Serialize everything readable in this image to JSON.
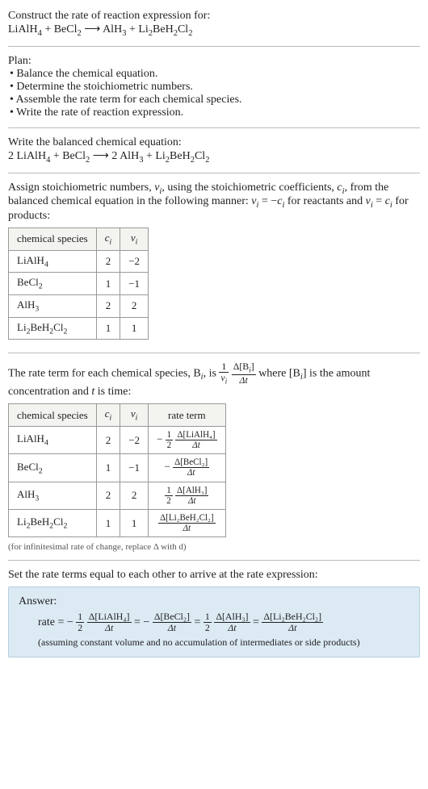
{
  "prompt": {
    "line1": "Construct the rate of reaction expression for:",
    "equation_lhs1": "LiAlH",
    "equation_lhs1_sub": "4",
    "equation_plus1": " + ",
    "equation_lhs2": "BeCl",
    "equation_lhs2_sub": "2",
    "equation_arrow": " ⟶ ",
    "equation_rhs1": "AlH",
    "equation_rhs1_sub": "3",
    "equation_plus2": " + ",
    "equation_rhs2": "Li",
    "equation_rhs2_sub1": "2",
    "equation_rhs2b": "BeH",
    "equation_rhs2_sub2": "2",
    "equation_rhs2c": "Cl",
    "equation_rhs2_sub3": "2"
  },
  "plan": {
    "title": "Plan:",
    "items": [
      "Balance the chemical equation.",
      "Determine the stoichiometric numbers.",
      "Assemble the rate term for each chemical species.",
      "Write the rate of reaction expression."
    ]
  },
  "balanced": {
    "title": "Write the balanced chemical equation:",
    "c1": "2 ",
    "s1": "LiAlH",
    "s1sub": "4",
    "plus1": " + ",
    "s2": "BeCl",
    "s2sub": "2",
    "arrow": " ⟶ ",
    "c2": "2 ",
    "s3": "AlH",
    "s3sub": "3",
    "plus2": " + ",
    "s4a": "Li",
    "s4sub1": "2",
    "s4b": "BeH",
    "s4sub2": "2",
    "s4c": "Cl",
    "s4sub3": "2"
  },
  "stoich": {
    "intro1": "Assign stoichiometric numbers, ",
    "nu": "ν",
    "nu_sub": "i",
    "intro2": ", using the stoichiometric coefficients, ",
    "c": "c",
    "c_sub": "i",
    "intro3": ", from the balanced chemical equation in the following manner: ",
    "rel1a": "ν",
    "rel1sub": "i",
    "rel1eq": " = −",
    "rel1c": "c",
    "rel1csub": "i",
    "intro4": " for reactants and ",
    "rel2a": "ν",
    "rel2sub": "i",
    "rel2eq": " = ",
    "rel2c": "c",
    "rel2csub": "i",
    "intro5": " for products:",
    "headers": [
      "chemical species",
      "cᵢ",
      "νᵢ"
    ],
    "h_c": "c",
    "h_c_sub": "i",
    "h_nu": "ν",
    "h_nu_sub": "i",
    "rows": [
      {
        "sp_a": "LiAlH",
        "sp_sub1": "4",
        "sp_b": "",
        "sp_sub2": "",
        "sp_c": "",
        "sp_sub3": "",
        "ci": "2",
        "vi": "−2"
      },
      {
        "sp_a": "BeCl",
        "sp_sub1": "2",
        "sp_b": "",
        "sp_sub2": "",
        "sp_c": "",
        "sp_sub3": "",
        "ci": "1",
        "vi": "−1"
      },
      {
        "sp_a": "AlH",
        "sp_sub1": "3",
        "sp_b": "",
        "sp_sub2": "",
        "sp_c": "",
        "sp_sub3": "",
        "ci": "2",
        "vi": "2"
      },
      {
        "sp_a": "Li",
        "sp_sub1": "2",
        "sp_b": "BeH",
        "sp_sub2": "2",
        "sp_c": "Cl",
        "sp_sub3": "2",
        "ci": "1",
        "vi": "1"
      }
    ]
  },
  "rateterm": {
    "t1": "The rate term for each chemical species, B",
    "t1sub": "i",
    "t2": ", is ",
    "frac1_num": "1",
    "frac1_den_a": "ν",
    "frac1_den_sub": "i",
    "frac2_num_a": "Δ[B",
    "frac2_num_sub": "i",
    "frac2_num_b": "]",
    "frac2_den": "Δt",
    "t3": " where [B",
    "t3sub": "i",
    "t4": "] is the amount concentration and ",
    "t5": "t",
    "t6": " is time:",
    "headers": {
      "sp": "chemical species",
      "c": "c",
      "c_sub": "i",
      "nu": "ν",
      "nu_sub": "i",
      "rt": "rate term"
    },
    "rows": [
      {
        "sp_a": "LiAlH",
        "sp_sub1": "4",
        "sp_b": "",
        "sp_sub2": "",
        "sp_c": "",
        "sp_sub3": "",
        "ci": "2",
        "vi": "−2",
        "neg": "−",
        "coef_num": "1",
        "coef_den": "2",
        "d_num": "Δ[LiAlH₄]",
        "d_den": "Δt"
      },
      {
        "sp_a": "BeCl",
        "sp_sub1": "2",
        "sp_b": "",
        "sp_sub2": "",
        "sp_c": "",
        "sp_sub3": "",
        "ci": "1",
        "vi": "−1",
        "neg": "−",
        "coef_num": "",
        "coef_den": "",
        "d_num": "Δ[BeCl₂]",
        "d_den": "Δt"
      },
      {
        "sp_a": "AlH",
        "sp_sub1": "3",
        "sp_b": "",
        "sp_sub2": "",
        "sp_c": "",
        "sp_sub3": "",
        "ci": "2",
        "vi": "2",
        "neg": "",
        "coef_num": "1",
        "coef_den": "2",
        "d_num": "Δ[AlH₃]",
        "d_den": "Δt"
      },
      {
        "sp_a": "Li",
        "sp_sub1": "2",
        "sp_b": "BeH",
        "sp_sub2": "2",
        "sp_c": "Cl",
        "sp_sub3": "2",
        "ci": "1",
        "vi": "1",
        "neg": "",
        "coef_num": "",
        "coef_den": "",
        "d_num": "Δ[Li₂BeH₂Cl₂]",
        "d_den": "Δt"
      }
    ],
    "note": "(for infinitesimal rate of change, replace Δ with d)"
  },
  "final": {
    "intro": "Set the rate terms equal to each other to arrive at the rate expression:",
    "label": "Answer:",
    "rate": "rate = ",
    "t1_neg": "−",
    "t1_cnum": "1",
    "t1_cden": "2",
    "t1_num": "Δ[LiAlH₄]",
    "t1_den": "Δt",
    "eq1": " = ",
    "t2_neg": "−",
    "t2_num": "Δ[BeCl₂]",
    "t2_den": "Δt",
    "eq2": " = ",
    "t3_cnum": "1",
    "t3_cden": "2",
    "t3_num": "Δ[AlH₃]",
    "t3_den": "Δt",
    "eq3": " = ",
    "t4_num": "Δ[Li₂BeH₂Cl₂]",
    "t4_den": "Δt",
    "assume": "(assuming constant volume and no accumulation of intermediates or side products)"
  }
}
